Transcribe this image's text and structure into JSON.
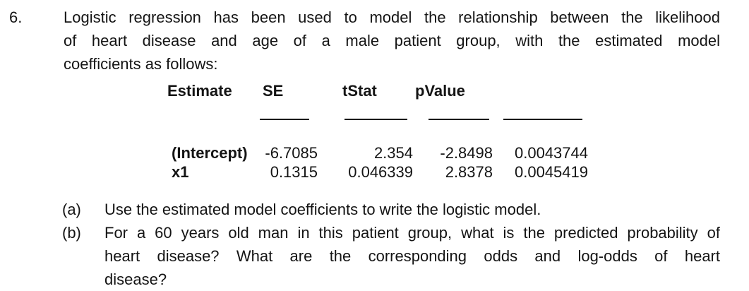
{
  "colors": {
    "text": "#141414",
    "background": "#ffffff",
    "rule": "#1a1a1a"
  },
  "question": {
    "number": "6.",
    "lines": [
      "Logistic regression has been used to model the relationship between the likelihood",
      "of heart disease and age of a male patient group, with the estimated model",
      "coefficients as follows:"
    ]
  },
  "table": {
    "headers": [
      "Estimate",
      "SE",
      "tStat",
      "pValue"
    ],
    "rows": [
      {
        "label": "(Intercept)",
        "estimate": "-6.7085",
        "se": "2.354",
        "tstat": "-2.8498",
        "pvalue": "0.0043744"
      },
      {
        "label": "x1",
        "estimate": "0.1315",
        "se": "0.046339",
        "tstat": "2.8378",
        "pvalue": "0.0045419"
      }
    ]
  },
  "parts": [
    {
      "label": "(a)",
      "lines": [
        "Use the estimated model coefficients to write the logistic model."
      ]
    },
    {
      "label": "(b)",
      "lines": [
        "For a 60 years old man in this patient group, what is the predicted probability of",
        "heart disease? What are the corresponding odds and log-odds of heart",
        "disease?"
      ]
    }
  ]
}
